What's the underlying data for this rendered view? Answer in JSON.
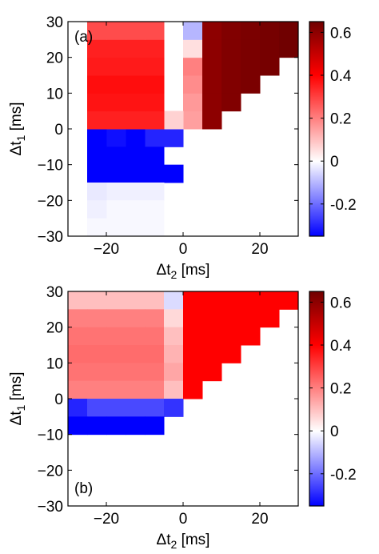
{
  "chart_data": [
    {
      "type": "heatmap",
      "panel_label": "(a)",
      "xlabel": "Δt",
      "xlabel_sub": "2",
      "xlabel_unit": " [ms]",
      "ylabel": "Δt",
      "ylabel_sub": "1",
      "ylabel_unit": " [ms]",
      "xlim": [
        -30,
        30
      ],
      "ylim": [
        -30,
        30
      ],
      "xticks": [
        -20,
        0,
        20
      ],
      "yticks": [
        -30,
        -20,
        -10,
        0,
        10,
        20,
        30
      ],
      "xticklabels": [
        "−20",
        "0",
        "20"
      ],
      "yticklabels": [
        "−30",
        "−20",
        "−10",
        "0",
        "10",
        "20",
        "30"
      ],
      "cell_width_ms": 5,
      "cells": [
        [
          -5,
          -5,
          -0.3
        ],
        [
          -10,
          -5,
          -0.3
        ],
        [
          -15,
          -5,
          -0.35
        ],
        [
          -20,
          -5,
          -0.33
        ],
        [
          -25,
          -5,
          -0.35
        ],
        [
          -10,
          -10,
          -0.35
        ],
        [
          -15,
          -10,
          -0.35
        ],
        [
          -20,
          -10,
          -0.35
        ],
        [
          -25,
          -10,
          -0.35
        ],
        [
          -5,
          -15,
          -0.35
        ],
        [
          -10,
          -15,
          -0.35
        ],
        [
          -15,
          -15,
          -0.35
        ],
        [
          -20,
          -15,
          -0.35
        ],
        [
          -25,
          -15,
          -0.35
        ],
        [
          -10,
          -20,
          -0.02
        ],
        [
          -15,
          -20,
          -0.02
        ],
        [
          -20,
          -20,
          -0.02
        ],
        [
          -25,
          -20,
          -0.03
        ],
        [
          -10,
          -25,
          -0.01
        ],
        [
          -15,
          -25,
          -0.01
        ],
        [
          -20,
          -25,
          -0.01
        ],
        [
          -25,
          -25,
          -0.02
        ],
        [
          -10,
          -30,
          -0.01
        ],
        [
          -15,
          -30,
          -0.01
        ],
        [
          -20,
          -30,
          -0.01
        ],
        [
          -25,
          -30,
          -0.01
        ],
        [
          -5,
          0,
          0.07
        ],
        [
          0,
          0,
          0.15
        ],
        [
          0,
          5,
          0.16
        ],
        [
          0,
          10,
          0.18
        ],
        [
          0,
          15,
          0.2
        ],
        [
          0,
          20,
          0.05
        ],
        [
          0,
          25,
          -0.1
        ],
        [
          -5,
          0,
          0.07
        ],
        [
          -10,
          0,
          0.35
        ],
        [
          -15,
          0,
          0.35
        ],
        [
          -20,
          0,
          0.35
        ],
        [
          -25,
          0,
          0.35
        ],
        [
          -10,
          5,
          0.37
        ],
        [
          -15,
          5,
          0.37
        ],
        [
          -20,
          5,
          0.37
        ],
        [
          -25,
          5,
          0.37
        ],
        [
          -10,
          10,
          0.38
        ],
        [
          -15,
          10,
          0.38
        ],
        [
          -20,
          10,
          0.38
        ],
        [
          -25,
          10,
          0.38
        ],
        [
          -10,
          15,
          0.36
        ],
        [
          -15,
          15,
          0.36
        ],
        [
          -20,
          15,
          0.36
        ],
        [
          -25,
          15,
          0.36
        ],
        [
          -10,
          20,
          0.35
        ],
        [
          -15,
          20,
          0.35
        ],
        [
          -20,
          20,
          0.35
        ],
        [
          -25,
          20,
          0.35
        ],
        [
          -10,
          25,
          0.28
        ],
        [
          -15,
          25,
          0.28
        ],
        [
          -20,
          25,
          0.28
        ],
        [
          -25,
          25,
          0.28
        ],
        [
          5,
          0,
          0.6
        ],
        [
          5,
          5,
          0.6
        ],
        [
          5,
          10,
          0.6
        ],
        [
          5,
          15,
          0.6
        ],
        [
          5,
          20,
          0.6
        ],
        [
          5,
          25,
          0.6
        ],
        [
          10,
          5,
          0.62
        ],
        [
          10,
          10,
          0.62
        ],
        [
          10,
          15,
          0.62
        ],
        [
          10,
          20,
          0.62
        ],
        [
          10,
          25,
          0.62
        ],
        [
          15,
          10,
          0.63
        ],
        [
          15,
          15,
          0.63
        ],
        [
          15,
          20,
          0.63
        ],
        [
          15,
          25,
          0.63
        ],
        [
          20,
          15,
          0.64
        ],
        [
          20,
          20,
          0.64
        ],
        [
          20,
          25,
          0.64
        ],
        [
          25,
          20,
          0.65
        ],
        [
          25,
          25,
          0.65
        ]
      ],
      "colorbar": {
        "min": -0.35,
        "max": 0.65,
        "ticks": [
          -0.2,
          0,
          0.2,
          0.4,
          0.6
        ],
        "ticklabels": [
          "-0.2",
          "0",
          "0.2",
          "0.4",
          "0.6"
        ],
        "colors": [
          "#0000ff",
          "#ffffff",
          "#ff0000",
          "#700000"
        ]
      }
    },
    {
      "type": "heatmap",
      "panel_label": "(b)",
      "xlabel": "Δt",
      "xlabel_sub": "2",
      "xlabel_unit": " [ms]",
      "ylabel": "Δt",
      "ylabel_sub": "1",
      "ylabel_unit": " [ms]",
      "xlim": [
        -30,
        30
      ],
      "ylim": [
        -30,
        30
      ],
      "xticks": [
        -20,
        0,
        20
      ],
      "yticks": [
        -30,
        -20,
        -10,
        0,
        10,
        20,
        30
      ],
      "xticklabels": [
        "−20",
        "0",
        "20"
      ],
      "yticklabels": [
        "−30",
        "−20",
        "−10",
        "0",
        "10",
        "20",
        "30"
      ],
      "cell_width_ms": 5,
      "cells": [
        [
          -30,
          25,
          0.1
        ],
        [
          -25,
          25,
          0.1
        ],
        [
          -20,
          25,
          0.1
        ],
        [
          -15,
          25,
          0.1
        ],
        [
          -10,
          25,
          0.1
        ],
        [
          -5,
          25,
          -0.05
        ],
        [
          -30,
          20,
          0.2
        ],
        [
          -25,
          20,
          0.2
        ],
        [
          -20,
          20,
          0.2
        ],
        [
          -15,
          20,
          0.2
        ],
        [
          -10,
          20,
          0.2
        ],
        [
          -5,
          20,
          0.06
        ],
        [
          -30,
          15,
          0.22
        ],
        [
          -25,
          15,
          0.22
        ],
        [
          -20,
          15,
          0.22
        ],
        [
          -15,
          15,
          0.22
        ],
        [
          -10,
          15,
          0.22
        ],
        [
          -5,
          15,
          0.1
        ],
        [
          -30,
          10,
          0.23
        ],
        [
          -25,
          10,
          0.23
        ],
        [
          -20,
          10,
          0.23
        ],
        [
          -15,
          10,
          0.23
        ],
        [
          -10,
          10,
          0.23
        ],
        [
          -5,
          10,
          0.12
        ],
        [
          -30,
          5,
          0.22
        ],
        [
          -25,
          5,
          0.22
        ],
        [
          -20,
          5,
          0.22
        ],
        [
          -15,
          5,
          0.22
        ],
        [
          -10,
          5,
          0.22
        ],
        [
          -5,
          5,
          0.14
        ],
        [
          -30,
          0,
          0.2
        ],
        [
          -25,
          0,
          0.2
        ],
        [
          -20,
          0,
          0.2
        ],
        [
          -15,
          0,
          0.2
        ],
        [
          -10,
          0,
          0.2
        ],
        [
          -5,
          0,
          0.1
        ],
        [
          -30,
          -5,
          -0.3
        ],
        [
          -25,
          -5,
          -0.25
        ],
        [
          -20,
          -5,
          -0.25
        ],
        [
          -15,
          -5,
          -0.25
        ],
        [
          -10,
          -5,
          -0.25
        ],
        [
          -5,
          -5,
          -0.28
        ],
        [
          -30,
          -10,
          -0.35
        ],
        [
          -25,
          -10,
          -0.35
        ],
        [
          -20,
          -10,
          -0.35
        ],
        [
          -15,
          -10,
          -0.35
        ],
        [
          -10,
          -10,
          -0.35
        ],
        [
          0,
          25,
          0.4
        ],
        [
          5,
          25,
          0.4
        ],
        [
          10,
          25,
          0.4
        ],
        [
          15,
          25,
          0.4
        ],
        [
          20,
          25,
          0.4
        ],
        [
          25,
          25,
          0.4
        ],
        [
          0,
          20,
          0.4
        ],
        [
          5,
          20,
          0.4
        ],
        [
          10,
          20,
          0.4
        ],
        [
          15,
          20,
          0.4
        ],
        [
          20,
          20,
          0.4
        ],
        [
          0,
          15,
          0.4
        ],
        [
          5,
          15,
          0.4
        ],
        [
          10,
          15,
          0.4
        ],
        [
          15,
          15,
          0.4
        ],
        [
          0,
          10,
          0.4
        ],
        [
          5,
          10,
          0.4
        ],
        [
          10,
          10,
          0.4
        ],
        [
          0,
          5,
          0.4
        ],
        [
          5,
          5,
          0.4
        ],
        [
          0,
          0,
          0.4
        ]
      ],
      "colorbar": {
        "min": -0.35,
        "max": 0.65,
        "ticks": [
          -0.2,
          0,
          0.2,
          0.4,
          0.6
        ],
        "ticklabels": [
          "-0.2",
          "0",
          "0.2",
          "0.4",
          "0.6"
        ],
        "colors": [
          "#0000ff",
          "#ffffff",
          "#ff0000",
          "#700000"
        ]
      }
    }
  ]
}
